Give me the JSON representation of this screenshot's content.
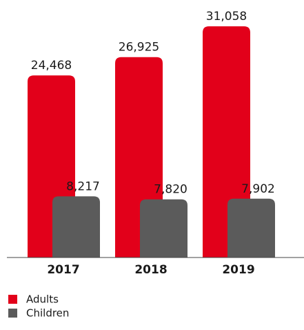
{
  "chart_data": {
    "type": "bar",
    "categories": [
      "2017",
      "2018",
      "2019"
    ],
    "series": [
      {
        "name": "Adults",
        "color": "#e2001a",
        "values": [
          24468,
          26925,
          31058
        ],
        "value_labels": [
          "24,468",
          "26,925",
          "31,058"
        ]
      },
      {
        "name": "Children",
        "color": "#5b5b5b",
        "values": [
          8217,
          7820,
          7902
        ],
        "value_labels": [
          "8,217",
          "7,820",
          "7,902"
        ]
      }
    ],
    "ylim": [
      0,
      32000
    ]
  }
}
